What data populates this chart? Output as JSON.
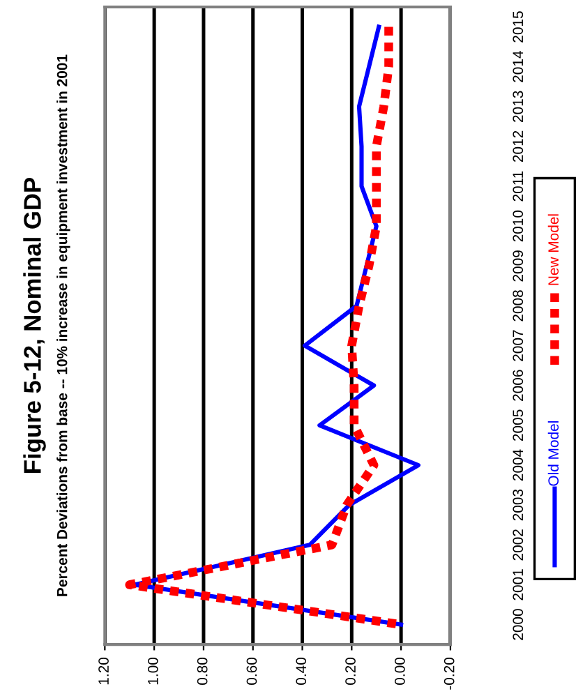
{
  "chart_data": {
    "type": "line",
    "orientation": "horizontal",
    "title": "Figure 5-12, Nominal GDP",
    "subtitle": "Percent Deviations from base -- 10% increase in equipment investment in 2001",
    "categories": [
      "2015",
      "2014",
      "2013",
      "2012",
      "2011",
      "2010",
      "2009",
      "2008",
      "2007",
      "2006",
      "2005",
      "2004",
      "2003",
      "2002",
      "2001",
      "2000"
    ],
    "series": [
      {
        "name": "Old Model",
        "color": "#0000ff",
        "line_style": "solid",
        "values": [
          0.09,
          0.13,
          0.17,
          0.16,
          0.16,
          0.1,
          0.14,
          0.18,
          0.39,
          0.11,
          0.33,
          -0.07,
          0.21,
          0.37,
          1.08,
          0.0
        ]
      },
      {
        "name": "New Model",
        "color": "#ff0000",
        "line_style": "dashed",
        "values": [
          0.05,
          0.05,
          0.07,
          0.1,
          0.1,
          0.1,
          0.13,
          0.17,
          0.2,
          0.19,
          0.19,
          0.11,
          0.22,
          0.28,
          1.1,
          0.0
        ]
      }
    ],
    "xlim": [
      1.2,
      -0.2
    ],
    "xticks": [
      {
        "value": 1.2,
        "label": "1.20"
      },
      {
        "value": 1.0,
        "label": "1.00"
      },
      {
        "value": 0.8,
        "label": "0.80"
      },
      {
        "value": 0.6,
        "label": "0.60"
      },
      {
        "value": 0.4,
        "label": "0.40"
      },
      {
        "value": 0.2,
        "label": "0.20"
      },
      {
        "value": 0,
        "label": "0.00"
      },
      {
        "value": -0.2,
        "label": "-0.20"
      }
    ],
    "grid": "x",
    "legend": "right",
    "marker": "none"
  }
}
